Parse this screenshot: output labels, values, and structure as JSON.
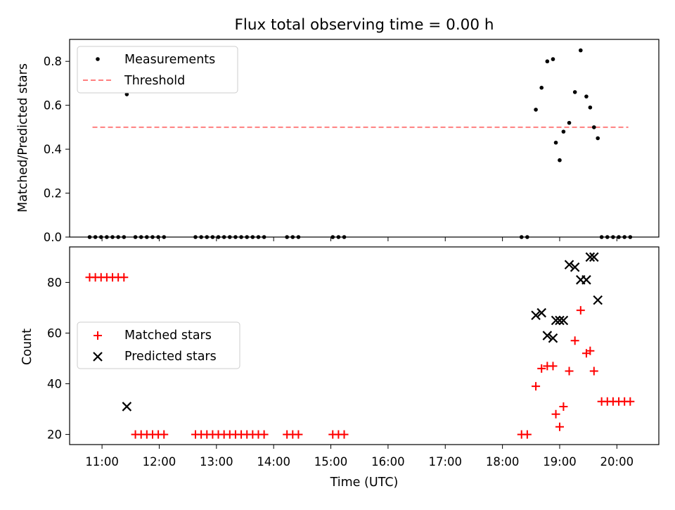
{
  "chart_data": [
    {
      "type": "scatter",
      "title": "Flux total observing time = 0.00 h",
      "xlabel": "",
      "ylabel": "Matched/Predicted stars",
      "ylim": [
        0,
        0.9
      ],
      "yticks": [
        "0.0",
        "0.2",
        "0.4",
        "0.6",
        "0.8"
      ],
      "legend": {
        "placement": "upper left",
        "entries": [
          {
            "label": "Measurements",
            "marker": "dot",
            "color": "#000000"
          },
          {
            "label": "Threshold",
            "marker": "dashed-line",
            "color": "#ff7f7f"
          }
        ]
      },
      "threshold": {
        "name": "Threshold",
        "y": 0.5,
        "x_range": [
          "10:50",
          "20:12"
        ]
      },
      "series": [
        {
          "name": "Measurements",
          "color": "#000000",
          "points": [
            [
              "10:47",
              0
            ],
            [
              "10:53",
              0
            ],
            [
              "10:59",
              0
            ],
            [
              "11:05",
              0
            ],
            [
              "11:11",
              0
            ],
            [
              "11:17",
              0
            ],
            [
              "11:23",
              0
            ],
            [
              "11:26",
              0.65
            ],
            [
              "11:35",
              0
            ],
            [
              "11:41",
              0
            ],
            [
              "11:47",
              0
            ],
            [
              "11:53",
              0
            ],
            [
              "11:59",
              0
            ],
            [
              "12:05",
              0
            ],
            [
              "12:38",
              0
            ],
            [
              "12:44",
              0
            ],
            [
              "12:50",
              0
            ],
            [
              "12:56",
              0
            ],
            [
              "13:02",
              0
            ],
            [
              "13:08",
              0
            ],
            [
              "13:14",
              0
            ],
            [
              "13:20",
              0
            ],
            [
              "13:26",
              0
            ],
            [
              "13:32",
              0
            ],
            [
              "13:38",
              0
            ],
            [
              "13:44",
              0
            ],
            [
              "13:50",
              0
            ],
            [
              "14:14",
              0
            ],
            [
              "14:20",
              0
            ],
            [
              "14:26",
              0
            ],
            [
              "15:02",
              0
            ],
            [
              "15:08",
              0
            ],
            [
              "15:14",
              0
            ],
            [
              "18:20",
              0
            ],
            [
              "18:26",
              0
            ],
            [
              "18:35",
              0.58
            ],
            [
              "18:41",
              0.68
            ],
            [
              "18:47",
              0.8
            ],
            [
              "18:53",
              0.81
            ],
            [
              "18:56",
              0.43
            ],
            [
              "19:00",
              0.35
            ],
            [
              "19:04",
              0.48
            ],
            [
              "19:10",
              0.52
            ],
            [
              "19:16",
              0.66
            ],
            [
              "19:22",
              0.85
            ],
            [
              "19:28",
              0.64
            ],
            [
              "19:32",
              0.59
            ],
            [
              "19:36",
              0.5
            ],
            [
              "19:40",
              0.45
            ],
            [
              "19:44",
              0
            ],
            [
              "19:50",
              0
            ],
            [
              "19:56",
              0
            ],
            [
              "20:02",
              0
            ],
            [
              "20:08",
              0
            ],
            [
              "20:14",
              0
            ]
          ]
        }
      ]
    },
    {
      "type": "scatter",
      "title": "",
      "xlabel": "Time (UTC)",
      "ylabel": "Count",
      "ylim": [
        16,
        94
      ],
      "yticks": [
        "20",
        "40",
        "60",
        "80"
      ],
      "xticks": [
        "11:00",
        "12:00",
        "13:00",
        "14:00",
        "15:00",
        "16:00",
        "17:00",
        "18:00",
        "19:00",
        "20:00"
      ],
      "xlim": [
        "10:26",
        "20:44"
      ],
      "legend": {
        "placement": "center left",
        "entries": [
          {
            "label": "Matched stars",
            "marker": "plus",
            "color": "#ff0000"
          },
          {
            "label": "Predicted stars",
            "marker": "x",
            "color": "#000000"
          }
        ]
      },
      "series": [
        {
          "name": "Matched stars",
          "marker": "plus",
          "color": "#ff0000",
          "points": [
            [
              "10:47",
              82
            ],
            [
              "10:53",
              82
            ],
            [
              "10:59",
              82
            ],
            [
              "11:05",
              82
            ],
            [
              "11:11",
              82
            ],
            [
              "11:17",
              82
            ],
            [
              "11:23",
              82
            ],
            [
              "11:35",
              20
            ],
            [
              "11:41",
              20
            ],
            [
              "11:47",
              20
            ],
            [
              "11:53",
              20
            ],
            [
              "11:59",
              20
            ],
            [
              "12:05",
              20
            ],
            [
              "12:38",
              20
            ],
            [
              "12:44",
              20
            ],
            [
              "12:50",
              20
            ],
            [
              "12:56",
              20
            ],
            [
              "13:02",
              20
            ],
            [
              "13:08",
              20
            ],
            [
              "13:14",
              20
            ],
            [
              "13:20",
              20
            ],
            [
              "13:26",
              20
            ],
            [
              "13:32",
              20
            ],
            [
              "13:38",
              20
            ],
            [
              "13:44",
              20
            ],
            [
              "13:50",
              20
            ],
            [
              "14:14",
              20
            ],
            [
              "14:20",
              20
            ],
            [
              "14:26",
              20
            ],
            [
              "15:02",
              20
            ],
            [
              "15:08",
              20
            ],
            [
              "15:14",
              20
            ],
            [
              "18:20",
              20
            ],
            [
              "18:26",
              20
            ],
            [
              "18:35",
              39
            ],
            [
              "18:41",
              46
            ],
            [
              "18:47",
              47
            ],
            [
              "18:53",
              47
            ],
            [
              "18:56",
              28
            ],
            [
              "19:00",
              23
            ],
            [
              "19:04",
              31
            ],
            [
              "19:10",
              45
            ],
            [
              "19:16",
              57
            ],
            [
              "19:22",
              69
            ],
            [
              "19:28",
              52
            ],
            [
              "19:32",
              53
            ],
            [
              "19:36",
              45
            ],
            [
              "19:44",
              33
            ],
            [
              "19:50",
              33
            ],
            [
              "19:56",
              33
            ],
            [
              "20:02",
              33
            ],
            [
              "20:08",
              33
            ],
            [
              "20:14",
              33
            ]
          ]
        },
        {
          "name": "Predicted stars",
          "marker": "x",
          "color": "#000000",
          "points": [
            [
              "11:26",
              31
            ],
            [
              "18:35",
              67
            ],
            [
              "18:41",
              68
            ],
            [
              "18:47",
              59
            ],
            [
              "18:53",
              58
            ],
            [
              "18:56",
              65
            ],
            [
              "19:00",
              65
            ],
            [
              "19:04",
              65
            ],
            [
              "19:10",
              87
            ],
            [
              "19:16",
              86
            ],
            [
              "19:22",
              81
            ],
            [
              "19:28",
              81
            ],
            [
              "19:32",
              90
            ],
            [
              "19:36",
              90
            ],
            [
              "19:40",
              73
            ]
          ]
        }
      ]
    }
  ]
}
